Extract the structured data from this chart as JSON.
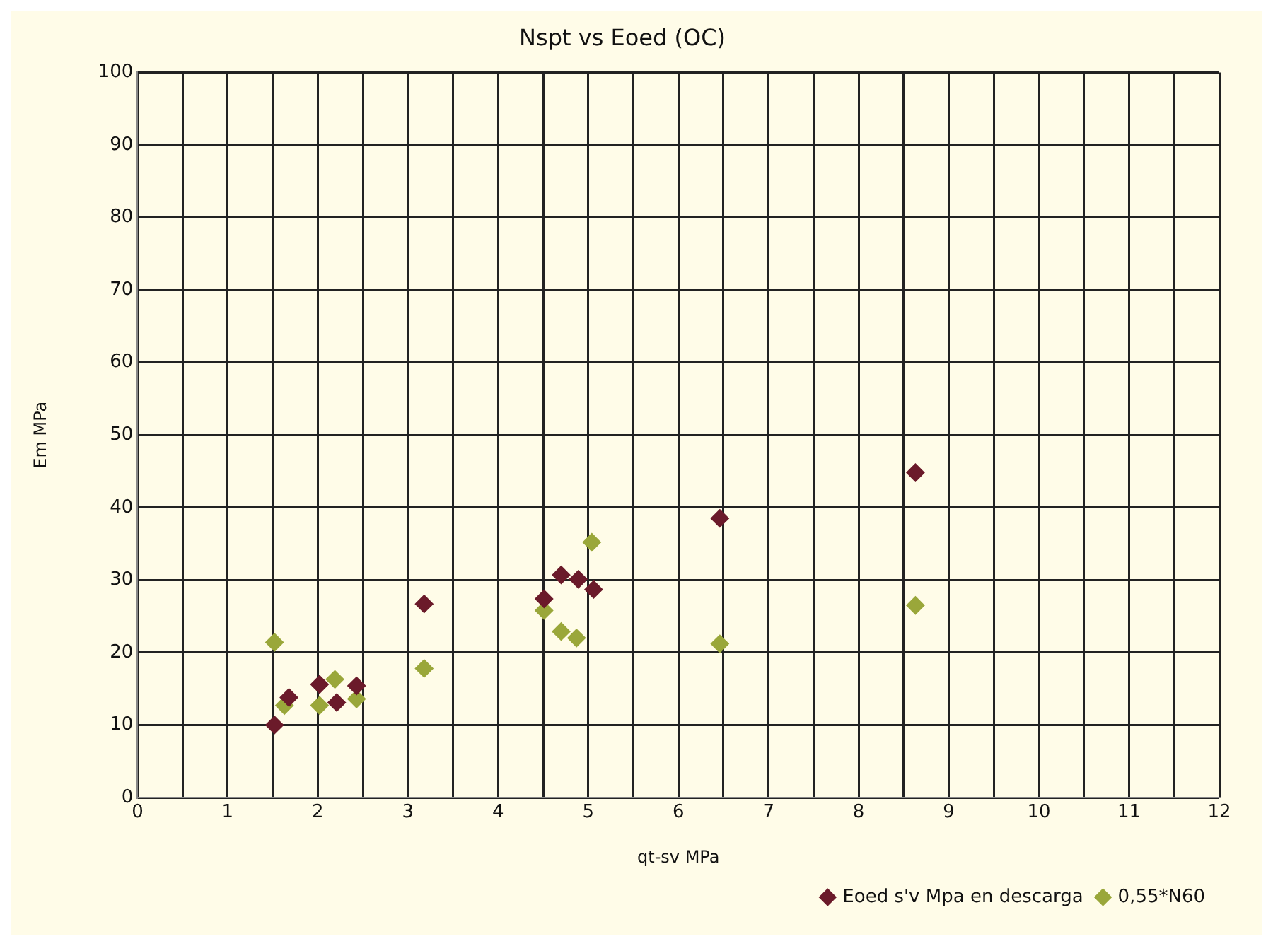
{
  "chart_data": {
    "type": "scatter",
    "title": "Nspt vs Eoed (OC)",
    "xlabel": "qt-sv MPa",
    "ylabel": "Em MPa",
    "xlim": [
      0,
      12
    ],
    "ylim": [
      0,
      100
    ],
    "xticks": [
      0,
      {
        "value": 0.5,
        "label": null
      },
      1,
      {
        "value": 1.5,
        "label": null
      },
      2,
      {
        "value": 2.5,
        "label": null
      },
      3,
      {
        "value": 3.5,
        "label": null
      },
      4,
      {
        "value": 4.5,
        "label": null
      },
      5,
      {
        "value": 5.5,
        "label": null
      },
      6,
      {
        "value": 6.5,
        "label": null
      },
      7,
      {
        "value": 7.5,
        "label": null
      },
      8,
      {
        "value": 8.5,
        "label": null
      },
      9,
      {
        "value": 9.5,
        "label": null
      },
      10,
      {
        "value": 10.5,
        "label": null
      },
      11,
      {
        "value": 11.5,
        "label": null
      },
      12
    ],
    "yticks": [
      0,
      10,
      20,
      30,
      40,
      50,
      60,
      70,
      80,
      90,
      100
    ],
    "grid": true,
    "legend": "bottom right",
    "marker": "diamond",
    "series": [
      {
        "name": "Eoed s'v Mpa en descarga",
        "color": "#6b1a2a",
        "x": [
          1.52,
          1.68,
          2.02,
          2.21,
          2.43,
          3.18,
          4.51,
          4.7,
          4.89,
          5.06,
          6.46,
          8.63
        ],
        "values": [
          10.0,
          13.8,
          15.6,
          13.1,
          15.4,
          26.7,
          27.4,
          30.7,
          30.1,
          28.7,
          38.5,
          44.8
        ]
      },
      {
        "name": "0,55*N60",
        "color": "#9aa73a",
        "x": [
          1.52,
          1.63,
          2.19,
          2.02,
          2.43,
          3.18,
          4.51,
          4.7,
          4.87,
          5.04,
          6.46,
          8.63
        ],
        "values": [
          21.4,
          12.7,
          16.3,
          12.7,
          13.6,
          17.8,
          25.8,
          22.9,
          22.0,
          35.2,
          21.2,
          26.5
        ]
      }
    ]
  }
}
